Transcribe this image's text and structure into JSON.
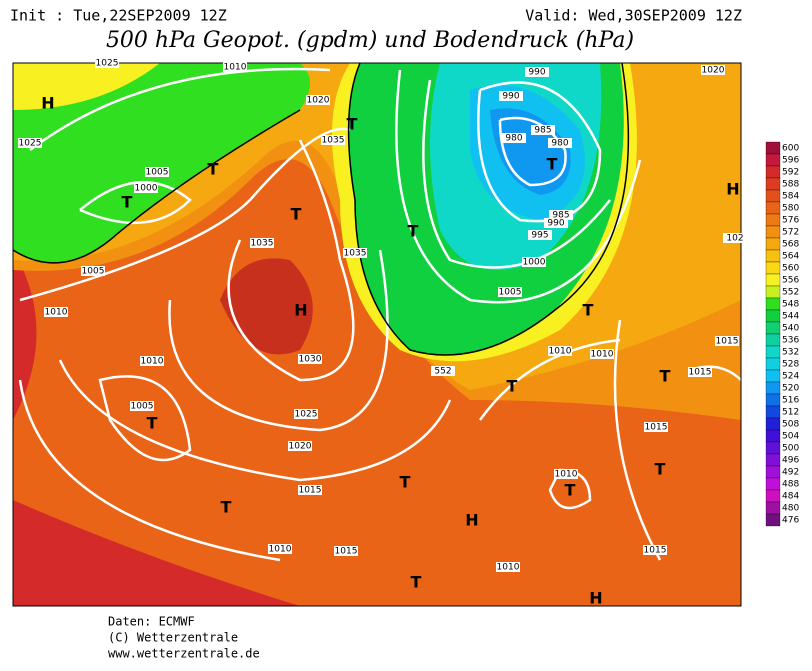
{
  "header": {
    "init": "Init : Tue,22SEP2009 12Z",
    "valid": "Valid: Wed,30SEP2009 12Z",
    "title": "500 hPa Geopot. (gpdm) und Bodendruck (hPa)"
  },
  "footer": {
    "source": "Daten: ECMWF",
    "copyright": "(C) Wetterzentrale",
    "url": "www.wetterzentrale.de"
  },
  "colorbar": [
    {
      "value": 600,
      "color": "#a0103a"
    },
    {
      "value": 596,
      "color": "#c4183c"
    },
    {
      "value": 592,
      "color": "#d42a2a"
    },
    {
      "value": 588,
      "color": "#de3c22"
    },
    {
      "value": 584,
      "color": "#e4501c"
    },
    {
      "value": 580,
      "color": "#ea6418"
    },
    {
      "value": 576,
      "color": "#ee7a14"
    },
    {
      "value": 572,
      "color": "#f29012"
    },
    {
      "value": 568,
      "color": "#f6a810"
    },
    {
      "value": 564,
      "color": "#f8c010"
    },
    {
      "value": 560,
      "color": "#fad814"
    },
    {
      "value": 556,
      "color": "#f8f020"
    },
    {
      "value": 552,
      "color": "#c8f020"
    },
    {
      "value": 548,
      "color": "#30e020"
    },
    {
      "value": 544,
      "color": "#10d040"
    },
    {
      "value": 540,
      "color": "#10d070"
    },
    {
      "value": 536,
      "color": "#10d0a0"
    },
    {
      "value": 532,
      "color": "#10d8c8"
    },
    {
      "value": 528,
      "color": "#10d0e0"
    },
    {
      "value": 524,
      "color": "#10c0f0"
    },
    {
      "value": 520,
      "color": "#1098f0"
    },
    {
      "value": 516,
      "color": "#1070e8"
    },
    {
      "value": 512,
      "color": "#1048e0"
    },
    {
      "value": 508,
      "color": "#2020d8"
    },
    {
      "value": 504,
      "color": "#4010d8"
    },
    {
      "value": 500,
      "color": "#6010d8"
    },
    {
      "value": 496,
      "color": "#8010d8"
    },
    {
      "value": 492,
      "color": "#a010d8"
    },
    {
      "value": 488,
      "color": "#c010d8"
    },
    {
      "value": 484,
      "color": "#d010c0"
    },
    {
      "value": 480,
      "color": "#a010a0"
    },
    {
      "value": 476,
      "color": "#701080"
    }
  ],
  "isobar_labels": [
    "1025",
    "1010",
    "1020",
    "1035",
    "1025",
    "1005",
    "1000",
    "1035",
    "1035",
    "1005",
    "1010",
    "990",
    "990",
    "980",
    "985",
    "980",
    "985",
    "990",
    "995",
    "1000",
    "1005",
    "1020",
    "1010",
    "1010",
    "1015",
    "1015",
    "1010",
    "1005",
    "1030",
    "1025",
    "1020",
    "1015",
    "1015",
    "1010",
    "1010",
    "1015",
    "1010",
    "1015",
    "102",
    "552"
  ],
  "pressure_centers": [
    "H",
    "T",
    "T",
    "T",
    "T",
    "H",
    "T",
    "T",
    "T",
    "T",
    "T",
    "T",
    "T",
    "T",
    "H",
    "T",
    "T",
    "H",
    "T",
    "H"
  ]
}
